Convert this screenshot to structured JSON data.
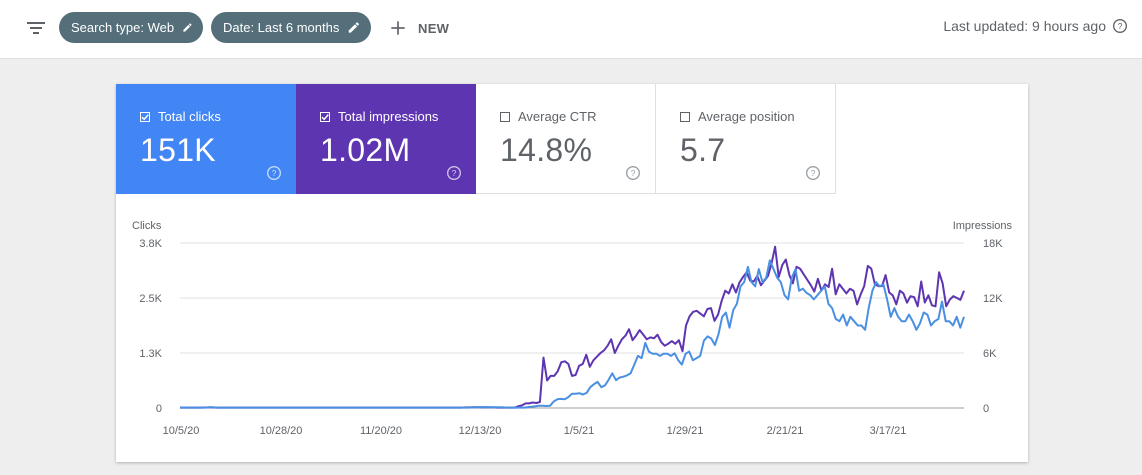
{
  "toolbar": {
    "filter_icon": "filter-list-icon",
    "chips": [
      {
        "label": "Search type: Web",
        "icon": "edit-icon"
      },
      {
        "label": "Date: Last 6 months",
        "icon": "edit-icon"
      }
    ],
    "new_label": "NEW",
    "last_updated": "Last updated: 9 hours ago"
  },
  "metrics": [
    {
      "label": "Total clicks",
      "value": "151K",
      "checked": true,
      "color": "#4285f4"
    },
    {
      "label": "Total impressions",
      "value": "1.02M",
      "checked": true,
      "color": "#5e35b1"
    },
    {
      "label": "Average CTR",
      "value": "14.8%",
      "checked": false,
      "color": "#ffffff"
    },
    {
      "label": "Average position",
      "value": "5.7",
      "checked": false,
      "color": "#ffffff"
    }
  ],
  "chart_data": {
    "type": "line",
    "left_axis_label": "Clicks",
    "right_axis_label": "Impressions",
    "left_ticks": [
      "3.8K",
      "2.5K",
      "1.3K",
      "0"
    ],
    "right_ticks": [
      "18K",
      "12K",
      "6K",
      "0"
    ],
    "left_ylim": [
      0,
      3800
    ],
    "right_ylim": [
      0,
      18000
    ],
    "x_ticks": [
      "10/5/20",
      "10/28/20",
      "11/20/20",
      "12/13/20",
      "1/5/21",
      "1/29/21",
      "2/21/21",
      "3/17/21"
    ],
    "grid": true,
    "series": [
      {
        "name": "Total clicks",
        "axis": "left",
        "color": "#4a90e2",
        "values": [
          10,
          10,
          10,
          10,
          10,
          10,
          10,
          10,
          15,
          15,
          10,
          10,
          10,
          10,
          10,
          10,
          10,
          10,
          10,
          10,
          10,
          10,
          10,
          10,
          10,
          10,
          10,
          10,
          10,
          10,
          10,
          10,
          10,
          10,
          10,
          10,
          10,
          10,
          10,
          10,
          10,
          10,
          10,
          10,
          10,
          10,
          10,
          10,
          10,
          10,
          10,
          10,
          10,
          10,
          10,
          10,
          10,
          10,
          10,
          10,
          10,
          10,
          10,
          10,
          10,
          10,
          10,
          10,
          10,
          10,
          10,
          10,
          10,
          10,
          10,
          10,
          10,
          10,
          10,
          10,
          15,
          15,
          20,
          20,
          20,
          15,
          15,
          15,
          15,
          10,
          10,
          10,
          10,
          10,
          10,
          20,
          30,
          40,
          50,
          50,
          45,
          50,
          150,
          200,
          210,
          200,
          250,
          330,
          330,
          340,
          310,
          350,
          480,
          550,
          600,
          480,
          520,
          650,
          800,
          640,
          700,
          720,
          750,
          800,
          1000,
          1200,
          1150,
          1500,
          1300,
          1250,
          1250,
          1200,
          1250,
          1250,
          1200,
          1260,
          1100,
          1000,
          1250,
          1300,
          1100,
          1150,
          1200,
          1550,
          1650,
          1600,
          1450,
          1700,
          2100,
          2200,
          1850,
          2250,
          2400,
          2800,
          2900,
          3250,
          2900,
          2800,
          3200,
          2900,
          3000,
          3400,
          3200,
          3000,
          2900,
          2600,
          2500,
          3000,
          3200,
          2700,
          2750,
          2650,
          2600,
          2500,
          2600,
          2700,
          2800,
          2400,
          2300,
          2050,
          2000,
          2150,
          1900,
          2100,
          2000,
          1900,
          1900,
          1800,
          2300,
          2700,
          2900,
          2800,
          2850,
          2500,
          2100,
          2300,
          2100,
          2000,
          2000,
          2150,
          2000,
          1800,
          1950,
          2200,
          2150,
          1900,
          2000,
          2050,
          2450,
          2000,
          2000,
          1900,
          2100,
          1850,
          2100
        ]
      },
      {
        "name": "Total impressions",
        "axis": "right",
        "color": "#5e35b1",
        "values": [
          40,
          40,
          40,
          40,
          40,
          40,
          40,
          50,
          60,
          60,
          40,
          40,
          40,
          40,
          40,
          40,
          40,
          40,
          40,
          40,
          40,
          40,
          40,
          40,
          40,
          40,
          40,
          40,
          40,
          40,
          40,
          40,
          40,
          40,
          40,
          40,
          40,
          40,
          40,
          40,
          40,
          40,
          40,
          40,
          40,
          40,
          40,
          40,
          40,
          40,
          40,
          40,
          40,
          40,
          40,
          40,
          40,
          40,
          40,
          40,
          40,
          40,
          40,
          40,
          40,
          40,
          40,
          40,
          40,
          40,
          40,
          40,
          40,
          40,
          40,
          40,
          40,
          40,
          40,
          40,
          60,
          60,
          80,
          80,
          80,
          60,
          60,
          60,
          60,
          40,
          40,
          40,
          40,
          40,
          40,
          200,
          300,
          500,
          500,
          600,
          550,
          650,
          5500,
          3000,
          3500,
          3500,
          4000,
          5000,
          5100,
          4800,
          3500,
          3600,
          4600,
          4800,
          5800,
          4500,
          5200,
          5600,
          6000,
          6300,
          6800,
          7500,
          6000,
          6800,
          7500,
          7900,
          8600,
          7400,
          7900,
          8500,
          8000,
          7500,
          7700,
          7600,
          8000,
          7200,
          6800,
          7000,
          7300,
          7000,
          7400,
          6200,
          9000,
          10000,
          10500,
          10600,
          10300,
          10000,
          10800,
          10900,
          9500,
          10200,
          11700,
          12800,
          12500,
          13500,
          12600,
          13700,
          14300,
          14800,
          13900,
          13800,
          14400,
          13400,
          13900,
          14400,
          15800,
          17600,
          14300,
          15600,
          16200,
          14500,
          13600,
          15400,
          15200,
          14600,
          14000,
          13400,
          12700,
          14100,
          12800,
          13500,
          13200,
          15200,
          12400,
          13500,
          13000,
          12500,
          13000,
          12800,
          11300,
          12400,
          13300,
          15500,
          15200,
          13500,
          13300,
          13300,
          14500,
          12600,
          12300,
          11300,
          12800,
          12500,
          11500,
          12200,
          12100,
          11100,
          13800,
          11500,
          12300,
          11200,
          11100,
          14800,
          13600,
          11100,
          11800,
          12200,
          12000,
          11800,
          12800
        ]
      }
    ]
  }
}
